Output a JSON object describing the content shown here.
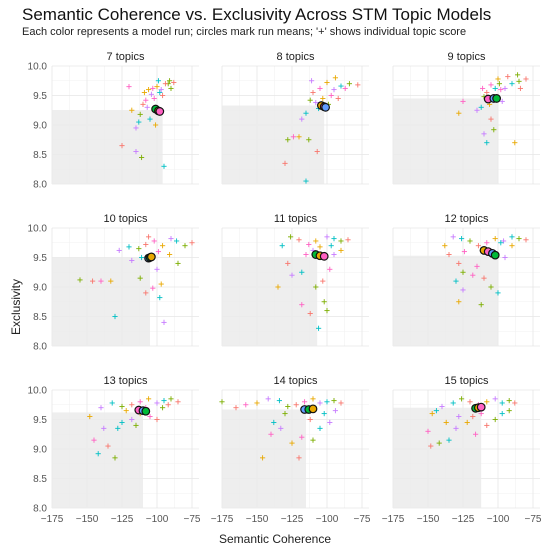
{
  "title": "Semantic Coherence vs. Exclusivity Across STM Topic Models",
  "subtitle": "Each color represents a model run; circles mark run means; '+' shows individual topic score",
  "chart_data": {
    "type": "scatter",
    "xlabel": "Semantic Coherence",
    "ylabel": "Exclusivity",
    "xlim": [
      -175,
      -70
    ],
    "ylim": [
      8.0,
      10.0
    ],
    "x_ticks": [
      "−175",
      "−150",
      "−125",
      "−100",
      "−75"
    ],
    "y_ticks": [
      "8.0",
      "8.5",
      "9.0",
      "9.5",
      "10.0"
    ],
    "run_colors": [
      "#F8766D",
      "#7CAE00",
      "#00BFC4",
      "#C77CFF",
      "#E9A800",
      "#FF61C3"
    ],
    "grid": true,
    "panels": [
      {
        "label": "7 topics",
        "shade": {
          "x_max": -96,
          "y_max": 9.25
        },
        "means": [
          [
            -101,
            9.27
          ],
          [
            -99,
            9.24
          ],
          [
            -98,
            9.23
          ]
        ],
        "points": [
          [
            -88,
            9.72
          ],
          [
            -92,
            9.7
          ],
          [
            -98,
            9.55
          ],
          [
            -104,
            9.52
          ],
          [
            -106,
            9.6
          ],
          [
            -108,
            9.42
          ],
          [
            -110,
            9.35
          ],
          [
            -112,
            9.18
          ],
          [
            -113,
            9.05
          ],
          [
            -115,
            8.95
          ],
          [
            -118,
            9.25
          ],
          [
            -120,
            9.65
          ],
          [
            -125,
            8.65
          ],
          [
            -111,
            8.45
          ],
          [
            -95,
            8.3
          ],
          [
            -97,
            9.6
          ],
          [
            -100,
            9.65
          ],
          [
            -102,
            9.45
          ],
          [
            -94,
            9.7
          ],
          [
            -90,
            9.62
          ],
          [
            -105,
            9.1
          ],
          [
            -107,
            9.3
          ],
          [
            -109,
            9.55
          ],
          [
            -103,
            9.62
          ],
          [
            -96,
            9.5
          ],
          [
            -91,
            9.75
          ],
          [
            -99,
            9.75
          ],
          [
            -115,
            8.55
          ],
          [
            -101,
            9.0
          ]
        ]
      },
      {
        "label": "8 topics",
        "shade": {
          "x_max": -102,
          "y_max": 9.33
        },
        "means": [
          [
            -104,
            9.33
          ],
          [
            -102,
            9.31
          ],
          [
            -101,
            9.3
          ]
        ],
        "points": [
          [
            -78,
            9.68
          ],
          [
            -84,
            9.7
          ],
          [
            -90,
            9.66
          ],
          [
            -95,
            9.6
          ],
          [
            -100,
            9.72
          ],
          [
            -105,
            9.62
          ],
          [
            -110,
            9.55
          ],
          [
            -112,
            9.42
          ],
          [
            -115,
            9.2
          ],
          [
            -118,
            9.1
          ],
          [
            -120,
            8.8
          ],
          [
            -124,
            8.8
          ],
          [
            -130,
            8.35
          ],
          [
            -128,
            8.75
          ],
          [
            -115,
            8.05
          ],
          [
            -108,
            9.38
          ],
          [
            -103,
            9.45
          ],
          [
            -97,
            9.5
          ],
          [
            -92,
            9.45
          ],
          [
            -99,
            9.35
          ],
          [
            -106,
            9.28
          ],
          [
            -111,
            9.75
          ],
          [
            -94,
            9.8
          ],
          [
            -87,
            9.62
          ],
          [
            -107,
            8.55
          ],
          [
            -113,
            8.75
          ]
        ]
      },
      {
        "label": "9 topics",
        "shade": {
          "x_max": -100,
          "y_max": 9.45
        },
        "means": [
          [
            -107,
            9.44
          ],
          [
            -103,
            9.45
          ],
          [
            -101,
            9.45
          ]
        ],
        "points": [
          [
            -80,
            9.78
          ],
          [
            -85,
            9.74
          ],
          [
            -90,
            9.7
          ],
          [
            -95,
            9.62
          ],
          [
            -100,
            9.78
          ],
          [
            -105,
            9.68
          ],
          [
            -108,
            9.55
          ],
          [
            -110,
            9.48
          ],
          [
            -112,
            9.3
          ],
          [
            -115,
            9.25
          ],
          [
            -128,
            9.2
          ],
          [
            -125,
            9.4
          ],
          [
            -105,
            9.1
          ],
          [
            -103,
            8.92
          ],
          [
            -108,
            8.7
          ],
          [
            -110,
            8.85
          ],
          [
            -88,
            8.7
          ],
          [
            -98,
            9.6
          ],
          [
            -93,
            9.82
          ],
          [
            -86,
            9.85
          ],
          [
            -102,
            9.62
          ],
          [
            -97,
            9.4
          ],
          [
            -106,
            9.35
          ],
          [
            -111,
            9.62
          ],
          [
            -84,
            9.62
          ],
          [
            -99,
            9.7
          ]
        ]
      },
      {
        "label": "10 topics",
        "shade": {
          "x_max": -105,
          "y_max": 9.5
        },
        "means": [
          [
            -106,
            9.49
          ],
          [
            -105,
            9.5
          ],
          [
            -104,
            9.51
          ]
        ],
        "points": [
          [
            -75,
            9.75
          ],
          [
            -80,
            9.7
          ],
          [
            -86,
            9.78
          ],
          [
            -90,
            9.82
          ],
          [
            -96,
            9.7
          ],
          [
            -102,
            9.78
          ],
          [
            -108,
            9.72
          ],
          [
            -113,
            9.65
          ],
          [
            -120,
            9.68
          ],
          [
            -127,
            9.62
          ],
          [
            -133,
            9.1
          ],
          [
            -140,
            9.1
          ],
          [
            -146,
            9.1
          ],
          [
            -155,
            9.12
          ],
          [
            -130,
            8.5
          ],
          [
            -100,
            9.3
          ],
          [
            -97,
            9.05
          ],
          [
            -103,
            8.98
          ],
          [
            -108,
            8.9
          ],
          [
            -112,
            9.15
          ],
          [
            -98,
            8.82
          ],
          [
            -95,
            8.4
          ],
          [
            -91,
            9.55
          ],
          [
            -99,
            9.6
          ],
          [
            -106,
            9.85
          ],
          [
            -85,
            9.4
          ],
          [
            -111,
            9.5
          ],
          [
            -118,
            9.45
          ]
        ]
      },
      {
        "label": "11 topics",
        "shade": {
          "x_max": -107,
          "y_max": 9.5
        },
        "means": [
          [
            -108,
            9.55
          ],
          [
            -105,
            9.53
          ],
          [
            -102,
            9.52
          ]
        ],
        "points": [
          [
            -85,
            9.8
          ],
          [
            -90,
            9.78
          ],
          [
            -95,
            9.82
          ],
          [
            -100,
            9.85
          ],
          [
            -108,
            9.78
          ],
          [
            -113,
            9.72
          ],
          [
            -120,
            9.8
          ],
          [
            -126,
            9.85
          ],
          [
            -132,
            9.7
          ],
          [
            -110,
            9.62
          ],
          [
            -105,
            9.68
          ],
          [
            -98,
            9.3
          ],
          [
            -103,
            9.1
          ],
          [
            -108,
            9.0
          ],
          [
            -118,
            9.25
          ],
          [
            -125,
            9.2
          ],
          [
            -135,
            9.0
          ],
          [
            -118,
            8.7
          ],
          [
            -112,
            8.55
          ],
          [
            -102,
            8.75
          ],
          [
            -106,
            8.3
          ],
          [
            -95,
            9.55
          ],
          [
            -90,
            9.62
          ],
          [
            -115,
            9.55
          ],
          [
            -128,
            9.4
          ],
          [
            -100,
            8.6
          ],
          [
            -97,
            9.7
          ]
        ]
      },
      {
        "label": "12 topics",
        "shade": {
          "x_max": -100,
          "y_max": 9.53
        },
        "means": [
          [
            -110,
            9.62
          ],
          [
            -107,
            9.6
          ],
          [
            -104,
            9.57
          ],
          [
            -102,
            9.54
          ]
        ],
        "points": [
          [
            -80,
            9.8
          ],
          [
            -85,
            9.82
          ],
          [
            -90,
            9.85
          ],
          [
            -96,
            9.78
          ],
          [
            -102,
            9.82
          ],
          [
            -108,
            9.75
          ],
          [
            -114,
            9.7
          ],
          [
            -120,
            9.78
          ],
          [
            -126,
            9.82
          ],
          [
            -132,
            9.85
          ],
          [
            -138,
            9.7
          ],
          [
            -124,
            9.6
          ],
          [
            -128,
            9.4
          ],
          [
            -125,
            9.25
          ],
          [
            -130,
            9.1
          ],
          [
            -125,
            8.95
          ],
          [
            -128,
            8.75
          ],
          [
            -115,
            9.35
          ],
          [
            -110,
            9.15
          ],
          [
            -105,
            9.0
          ],
          [
            -100,
            8.9
          ],
          [
            -95,
            9.5
          ],
          [
            -90,
            9.7
          ],
          [
            -118,
            9.2
          ],
          [
            -135,
            9.55
          ],
          [
            -112,
            8.7
          ],
          [
            -98,
            9.75
          ]
        ]
      },
      {
        "label": "13 topics",
        "shade": {
          "x_max": -110,
          "y_max": 9.62
        },
        "means": [
          [
            -113,
            9.66
          ],
          [
            -110,
            9.65
          ],
          [
            -108,
            9.64
          ]
        ],
        "points": [
          [
            -85,
            9.8
          ],
          [
            -90,
            9.85
          ],
          [
            -95,
            9.82
          ],
          [
            -100,
            9.78
          ],
          [
            -106,
            9.85
          ],
          [
            -112,
            9.8
          ],
          [
            -118,
            9.75
          ],
          [
            -125,
            9.72
          ],
          [
            -132,
            9.78
          ],
          [
            -140,
            9.7
          ],
          [
            -148,
            9.55
          ],
          [
            -145,
            9.15
          ],
          [
            -135,
            9.05
          ],
          [
            -130,
            8.85
          ],
          [
            -125,
            9.45
          ],
          [
            -118,
            9.5
          ],
          [
            -112,
            9.6
          ],
          [
            -105,
            9.55
          ],
          [
            -100,
            9.5
          ],
          [
            -96,
            9.7
          ],
          [
            -128,
            9.35
          ],
          [
            -138,
            9.35
          ],
          [
            -122,
            9.65
          ],
          [
            -108,
            9.7
          ],
          [
            -92,
            9.75
          ],
          [
            -115,
            9.4
          ],
          [
            -142,
            8.92
          ]
        ]
      },
      {
        "label": "14 topics",
        "shade": {
          "x_max": -115,
          "y_max": 9.67
        },
        "means": [
          [
            -116,
            9.67
          ],
          [
            -113,
            9.67
          ],
          [
            -110,
            9.68
          ]
        ],
        "points": [
          [
            -90,
            9.78
          ],
          [
            -95,
            9.82
          ],
          [
            -100,
            9.8
          ],
          [
            -105,
            9.78
          ],
          [
            -110,
            9.85
          ],
          [
            -116,
            9.8
          ],
          [
            -122,
            9.75
          ],
          [
            -128,
            9.72
          ],
          [
            -134,
            9.82
          ],
          [
            -142,
            9.85
          ],
          [
            -150,
            9.78
          ],
          [
            -158,
            9.75
          ],
          [
            -165,
            9.7
          ],
          [
            -175,
            9.8
          ],
          [
            -138,
            9.45
          ],
          [
            -133,
            9.35
          ],
          [
            -125,
            9.1
          ],
          [
            -118,
            9.2
          ],
          [
            -120,
            8.85
          ],
          [
            -110,
            9.15
          ],
          [
            -105,
            9.35
          ],
          [
            -98,
            9.45
          ],
          [
            -146,
            8.85
          ],
          [
            -140,
            9.25
          ],
          [
            -112,
            9.5
          ],
          [
            -130,
            9.6
          ],
          [
            -102,
            9.6
          ],
          [
            -94,
            9.65
          ]
        ]
      },
      {
        "label": "15 topics",
        "shade": {
          "x_max": -112,
          "y_max": 9.7
        },
        "means": [
          [
            -116,
            9.69
          ],
          [
            -114,
            9.7
          ],
          [
            -112,
            9.71
          ]
        ],
        "points": [
          [
            -88,
            9.78
          ],
          [
            -92,
            9.82
          ],
          [
            -97,
            9.78
          ],
          [
            -102,
            9.85
          ],
          [
            -108,
            9.8
          ],
          [
            -114,
            9.75
          ],
          [
            -120,
            9.8
          ],
          [
            -126,
            9.85
          ],
          [
            -132,
            9.78
          ],
          [
            -140,
            9.72
          ],
          [
            -147,
            9.6
          ],
          [
            -150,
            9.3
          ],
          [
            -148,
            9.05
          ],
          [
            -142,
            9.1
          ],
          [
            -135,
            9.15
          ],
          [
            -130,
            9.35
          ],
          [
            -122,
            9.45
          ],
          [
            -116,
            9.25
          ],
          [
            -108,
            9.4
          ],
          [
            -102,
            9.5
          ],
          [
            -97,
            9.6
          ],
          [
            -128,
            9.55
          ],
          [
            -137,
            9.45
          ],
          [
            -112,
            9.6
          ],
          [
            -118,
            9.55
          ],
          [
            -92,
            9.65
          ],
          [
            -144,
            9.65
          ]
        ]
      }
    ]
  }
}
